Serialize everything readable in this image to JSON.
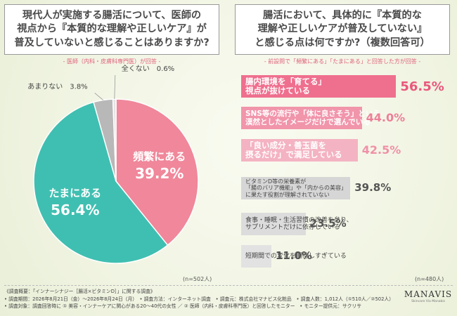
{
  "left_panel": {
    "question": "現代人が実施する腸活について、医師の視点から『本質的な理解や正しいケア』が普及していないと感じることはありますか?",
    "question_lines": [
      "現代人が実施する腸活について、医師の",
      "視点から『本質的な理解や正しいケア』が",
      "普及していないと感じることはありますか?"
    ],
    "caption": "- 医師（内科・皮膚科専門医）が回答 -",
    "n": "(n=502人)"
  },
  "right_panel": {
    "question_lines": [
      "腸活において、具体的に『本質的な",
      "理解や正しいケアが普及していない』",
      "と感じる点は何ですか?（複数回答可）"
    ],
    "caption": "- 前設問で「頻繁にある」「たまにある」と回答した方が回答 -",
    "n": "(n=480人)"
  },
  "chart_data": [
    {
      "type": "pie",
      "title": "現代人が実施する腸活について、医師の視点から『本質的な理解や正しいケア』が普及していないと感じることはありますか?",
      "unit": "%",
      "categories": [
        "頻繁にある",
        "たまにある",
        "あまりない",
        "全くない"
      ],
      "values": [
        39.2,
        56.4,
        3.8,
        0.6
      ],
      "value_labels": [
        "39.2%",
        "56.4%",
        "3.8%",
        "0.6%"
      ],
      "colors": [
        "#f0879a",
        "#3fbfb1",
        "#b8b8b8",
        "#e3e3e3"
      ],
      "label_style": [
        "inside",
        "inside",
        "outside",
        "outside"
      ]
    },
    {
      "type": "bar",
      "orientation": "horizontal",
      "title": "腸活において、具体的に『本質的な理解や正しいケアが普及していない』と感じる点は何ですか?（複数回答可）",
      "unit": "%",
      "xlim": [
        0,
        100
      ],
      "categories": [
        "腸内環境を「育てる」視点が抜けている",
        "SNS等の流行や「体に良さそう」という漠然としたイメージだけで選んでいる",
        "「良い成分・善玉菌を摂るだけ」で満足している",
        "ビタミンD等の栄養素が「腸のバリア機能」や「内からの美容」に果たす役割が理解されていない",
        "食事・睡眠・生活習慣の改善を怠り、サプリメントだけに依存している",
        "短期間での変化を期待しすぎている"
      ],
      "label_lines": [
        [
          "腸内環境を「育てる」",
          "視点が抜けている"
        ],
        [
          "SNS等の流行や「体に良さそう」という",
          "漠然としたイメージだけで選んでいる"
        ],
        [
          "「良い成分・善玉菌を",
          "摂るだけ」で満足している"
        ],
        [
          "ビタミンD等の栄養素が",
          "「腸のバリア機能」や「内からの美容」",
          "に果たす役割が理解されていない"
        ],
        [
          "食事・睡眠・生活習慣の改善を怠り、",
          "サプリメントだけに依存している"
        ],
        [
          "短期間での変化を期待しすぎている"
        ]
      ],
      "values": [
        56.5,
        44.0,
        42.5,
        39.8,
        23.5,
        11.0
      ],
      "value_labels": [
        "56.5%",
        "44.0%",
        "42.5%",
        "39.8%",
        "23.5%",
        "11.0%"
      ],
      "colors": [
        "#ef6f8e",
        "#f195ab",
        "#f4b3c2",
        "#d6d6d6",
        "#dcdcdc",
        "#e2e2e2"
      ],
      "label_colors": [
        "#ffffff",
        "#ffffff",
        "#ffffff",
        "#444444",
        "#444444",
        "#444444"
      ],
      "value_colors": [
        "#e9577c",
        "#ee7f99",
        "#f090a8",
        "#555555",
        "#555555",
        "#555555"
      ]
    }
  ],
  "footer": {
    "lines": [
      "《調査概要：「インナーシナジー［腸活×ビタミンD］」に関する調査》",
      "• 調査期間：2026年8月21日（金）〜2026年8月24日（月）　• 調査方法：インターネット調査　• 調査元：株式会社マナビス化粧品　• 調査人数：1,012人（①510人／②502人）",
      "• 調査対象：調査回答時に ① 美容・インナーケアに関心がある20〜40代の女性 ／ ② 医師（内科・皮膚科専門医）と回答したモニター　• モニター提供元：サクリサ"
    ]
  },
  "brand": {
    "name": "MANAVIS",
    "tagline": "Skincare Via Manabis"
  }
}
